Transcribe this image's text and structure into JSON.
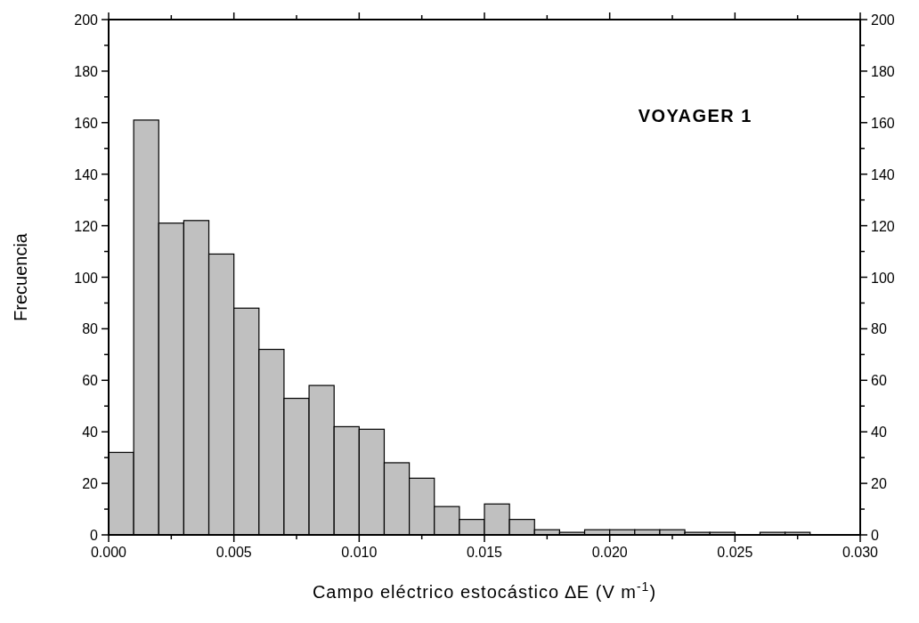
{
  "chart_data": {
    "type": "histogram",
    "xlabel": "Campo eléctrico estocástico ∆E (V m$^{-1}$)",
    "ylabel": "Frecuencia",
    "annotations": [
      "VOYAGER 1"
    ],
    "bins": [
      0,
      0.001,
      0.002,
      0.003,
      0.004,
      0.005,
      0.006,
      0.007,
      0.008,
      0.009,
      0.01,
      0.011,
      0.012,
      0.013,
      0.014,
      0.015,
      0.016,
      0.017,
      0.018,
      0.019,
      0.02,
      0.021,
      0.022,
      0.023,
      0.024,
      0.025,
      0.026,
      0.027,
      0.028,
      0.029,
      0.03
    ],
    "values": [
      32,
      161,
      121,
      122,
      109,
      88,
      72,
      53,
      58,
      42,
      41,
      28,
      22,
      11,
      6,
      12,
      6,
      2,
      1,
      2,
      2,
      2,
      2,
      1,
      1,
      0,
      1,
      1,
      0,
      0
    ],
    "color": "#c0c0c0",
    "xlim": [
      0,
      0.03
    ],
    "xticks": [
      {
        "value": 0,
        "label": "0.000"
      },
      {
        "value": 0.0025,
        "label": null
      },
      {
        "value": 0.005,
        "label": "0.005"
      },
      {
        "value": 0.0075,
        "label": null
      },
      {
        "value": 0.01,
        "label": "0.010"
      },
      {
        "value": 0.0125,
        "label": null
      },
      {
        "value": 0.015,
        "label": "0.015"
      },
      {
        "value": 0.0175,
        "label": null
      },
      {
        "value": 0.02,
        "label": "0.020"
      },
      {
        "value": 0.0225,
        "label": null
      },
      {
        "value": 0.025,
        "label": "0.025"
      },
      {
        "value": 0.0275,
        "label": null
      },
      {
        "value": 0.03,
        "label": "0.030"
      }
    ],
    "ylim": [
      0,
      200
    ],
    "yticks": [
      0,
      {
        "value": 10,
        "label": null
      },
      20,
      {
        "value": 30,
        "label": null
      },
      40,
      {
        "value": 50,
        "label": null
      },
      60,
      {
        "value": 70,
        "label": null
      },
      80,
      {
        "value": 90,
        "label": null
      },
      100,
      {
        "value": 110,
        "label": null
      },
      120,
      {
        "value": 130,
        "label": null
      },
      140,
      {
        "value": 150,
        "label": null
      },
      160,
      {
        "value": 170,
        "label": null
      },
      180,
      {
        "value": 190,
        "label": null
      },
      200
    ],
    "y2lim": [
      0,
      200
    ],
    "y2ticks": [
      0,
      {
        "value": 10,
        "label": null
      },
      20,
      {
        "value": 30,
        "label": null
      },
      40,
      {
        "value": 50,
        "label": null
      },
      60,
      {
        "value": 70,
        "label": null
      },
      80,
      {
        "value": 90,
        "label": null
      },
      100,
      {
        "value": 110,
        "label": null
      },
      120,
      {
        "value": 130,
        "label": null
      },
      140,
      {
        "value": 150,
        "label": null
      },
      160,
      {
        "value": 170,
        "label": null
      },
      180,
      {
        "value": 190,
        "label": null
      },
      200
    ]
  }
}
